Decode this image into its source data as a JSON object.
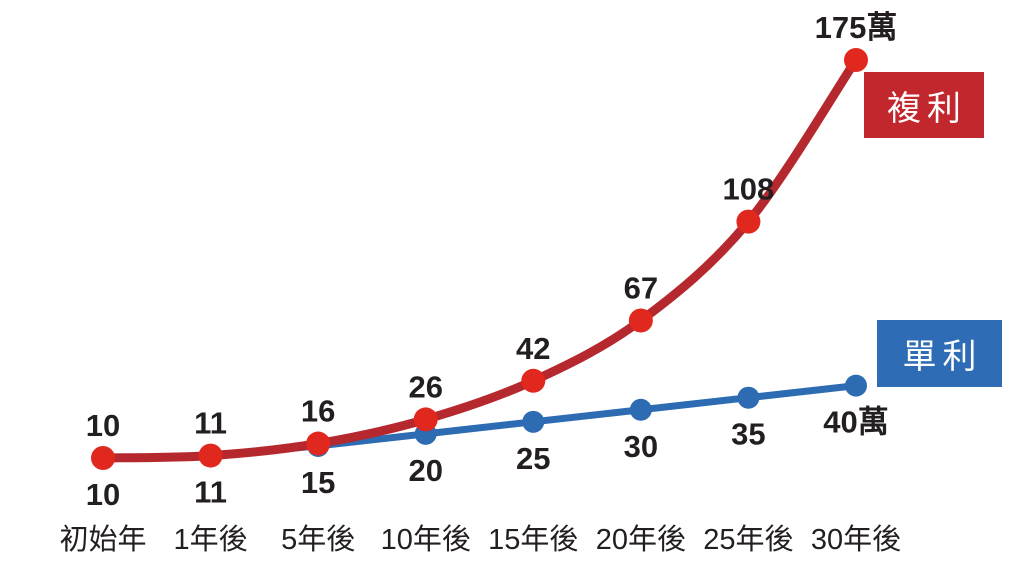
{
  "chart_data": {
    "type": "line",
    "title": "",
    "xlabel": "",
    "ylabel": "",
    "categories": [
      "初始年",
      "1年後",
      "5年後",
      "10年後",
      "15年後",
      "20年後",
      "25年後",
      "30年後"
    ],
    "series": [
      {
        "name": "單利",
        "values": [
          10,
          11,
          15,
          20,
          25,
          30,
          35,
          40
        ],
        "point_labels": [
          "10",
          "11",
          "15",
          "20",
          "25",
          "30",
          "35",
          "40萬"
        ],
        "line_color": "#2d6bb2",
        "dot_color": "#2d6bb2",
        "label_position": "below",
        "curve": "straight"
      },
      {
        "name": "複利",
        "values": [
          10,
          11,
          16,
          26,
          42,
          67,
          108,
          175
        ],
        "point_labels": [
          "10",
          "11",
          "16",
          "26",
          "42",
          "67",
          "108",
          "175萬"
        ],
        "line_color": "#b5292e",
        "dot_color": "#e1281e",
        "label_position": "above",
        "curve": "smooth"
      }
    ],
    "unit": "萬",
    "y_range": [
      10,
      175
    ],
    "grid": false,
    "axes_visible": false,
    "legend_position": "right-on-plot",
    "legend": [
      {
        "label": "複利",
        "bg": "#c1272d",
        "text_color": "#ffffff"
      },
      {
        "label": "單利",
        "bg": "#2e6db5",
        "text_color": "#ffffff"
      }
    ]
  },
  "styles": {
    "background": "#ffffff",
    "text_color": "#231f20"
  }
}
